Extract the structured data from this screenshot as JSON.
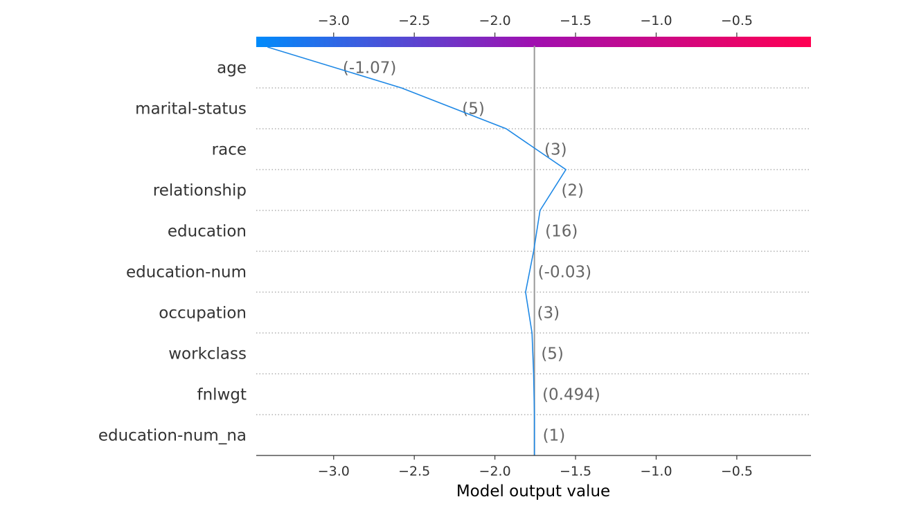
{
  "chart_data": {
    "type": "line",
    "xlabel": "Model output value",
    "xlim": [
      -3.48,
      -0.04
    ],
    "ticks": [
      -3.0,
      -2.5,
      -2.0,
      -1.5,
      -1.0,
      -0.5
    ],
    "tick_labels": [
      "−3.0",
      "−2.5",
      "−2.0",
      "−1.5",
      "−1.0",
      "−0.5"
    ],
    "base_value": -1.755,
    "colorbar": {
      "low_color": "#008bfb",
      "mid_color": "#a00fb0",
      "high_color": "#ff0052"
    },
    "line_color": "#1e88e5",
    "features": [
      {
        "name": "age",
        "value_label": "(-1.07)",
        "start": -3.41,
        "end": -2.58
      },
      {
        "name": "marital-status",
        "value_label": "(5)",
        "start": -2.58,
        "end": -1.93
      },
      {
        "name": "race",
        "value_label": "(3)",
        "start": -1.93,
        "end": -1.56
      },
      {
        "name": "relationship",
        "value_label": "(2)",
        "start": -1.56,
        "end": -1.72
      },
      {
        "name": "education",
        "value_label": "(16)",
        "start": -1.72,
        "end": -1.76
      },
      {
        "name": "education-num",
        "value_label": "(-0.03)",
        "start": -1.76,
        "end": -1.81
      },
      {
        "name": "occupation",
        "value_label": "(3)",
        "start": -1.81,
        "end": -1.77
      },
      {
        "name": "workclass",
        "value_label": "(5)",
        "start": -1.77,
        "end": -1.76
      },
      {
        "name": "fnlwgt",
        "value_label": "(0.494)",
        "start": -1.76,
        "end": -1.755
      },
      {
        "name": "education-num_na",
        "value_label": "(1)",
        "start": -1.755,
        "end": -1.755
      }
    ]
  }
}
